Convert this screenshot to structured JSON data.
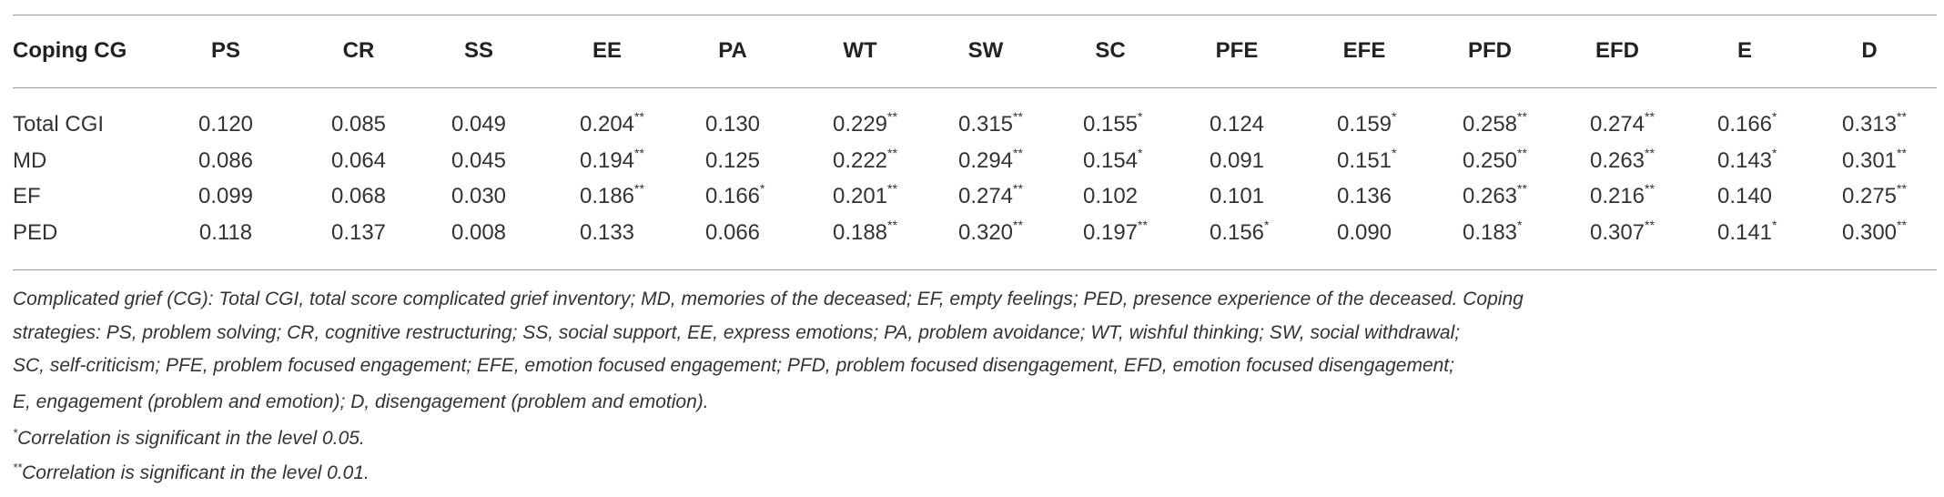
{
  "table": {
    "header": [
      "Coping CG",
      "PS",
      "CR",
      "SS",
      "EE",
      "PA",
      "WT",
      "SW",
      "SC",
      "PFE",
      "EFE",
      "PFD",
      "EFD",
      "E",
      "D"
    ],
    "rows": [
      {
        "label": "Total CGI",
        "cells": [
          {
            "value": "0.120"
          },
          {
            "value": "0.085"
          },
          {
            "value": "0.049"
          },
          {
            "value": "0.204",
            "sig": "**"
          },
          {
            "value": "0.130"
          },
          {
            "value": "0.229",
            "sig": "**"
          },
          {
            "value": "0.315",
            "sig": "**"
          },
          {
            "value": "0.155",
            "sig": "*"
          },
          {
            "value": "0.124"
          },
          {
            "value": "0.159",
            "sig": "*"
          },
          {
            "value": "0.258",
            "sig": "**"
          },
          {
            "value": "0.274",
            "sig": "**"
          },
          {
            "value": "0.166",
            "sig": "*"
          },
          {
            "value": "0.313",
            "sig": "**"
          }
        ]
      },
      {
        "label": "MD",
        "cells": [
          {
            "value": "0.086"
          },
          {
            "value": "0.064"
          },
          {
            "value": "0.045"
          },
          {
            "value": "0.194",
            "sig": "**"
          },
          {
            "value": "0.125"
          },
          {
            "value": "0.222",
            "sig": "**"
          },
          {
            "value": "0.294",
            "sig": "**"
          },
          {
            "value": "0.154",
            "sig": "*"
          },
          {
            "value": "0.091"
          },
          {
            "value": "0.151",
            "sig": "*"
          },
          {
            "value": "0.250",
            "sig": "**"
          },
          {
            "value": "0.263",
            "sig": "**"
          },
          {
            "value": "0.143",
            "sig": "*"
          },
          {
            "value": "0.301",
            "sig": "**"
          }
        ]
      },
      {
        "label": "EF",
        "cells": [
          {
            "value": "0.099"
          },
          {
            "value": "0.068"
          },
          {
            "value": "0.030"
          },
          {
            "value": "0.186",
            "sig": "**"
          },
          {
            "value": "0.166",
            "sig": "*"
          },
          {
            "value": "0.201",
            "sig": "**"
          },
          {
            "value": "0.274",
            "sig": "**"
          },
          {
            "value": "0.102"
          },
          {
            "value": "0.101"
          },
          {
            "value": "0.136"
          },
          {
            "value": "0.263",
            "sig": "**"
          },
          {
            "value": "0.216",
            "sig": "**"
          },
          {
            "value": "0.140"
          },
          {
            "value": "0.275",
            "sig": "**"
          }
        ]
      },
      {
        "label": "PED",
        "cells": [
          {
            "value": "0.118"
          },
          {
            "value": "0.137"
          },
          {
            "value": "0.008"
          },
          {
            "value": "0.133"
          },
          {
            "value": "0.066"
          },
          {
            "value": "0.188",
            "sig": "**"
          },
          {
            "value": "0.320",
            "sig": "**"
          },
          {
            "value": "0.197",
            "sig": "**"
          },
          {
            "value": "0.156",
            "sig": "*"
          },
          {
            "value": "0.090"
          },
          {
            "value": "0.183",
            "sig": "*"
          },
          {
            "value": "0.307",
            "sig": "**"
          },
          {
            "value": "0.141",
            "sig": "*"
          },
          {
            "value": "0.300",
            "sig": "**"
          }
        ]
      }
    ],
    "note_lines": [
      "Complicated grief (CG): Total CGI, total score complicated grief inventory; MD, memories of the deceased; EF, empty feelings; PED, presence experience of the deceased. Coping",
      "strategies: PS, problem solving; CR, cognitive restructuring; SS, social support, EE, express emotions; PA, problem avoidance; WT, wishful thinking; SW, social withdrawal;",
      "SC, self-criticism; PFE, problem focused engagement; EFE, emotion focused engagement; PFD, problem focused disengagement, EFD, emotion focused disengagement;",
      "E, engagement (problem and emotion); D, disengagement (problem and emotion)."
    ],
    "footnotes": [
      {
        "marker": "*",
        "text": "Correlation is significant in the level 0.05."
      },
      {
        "marker": "**",
        "text": "Correlation is significant in the level 0.01."
      }
    ]
  }
}
